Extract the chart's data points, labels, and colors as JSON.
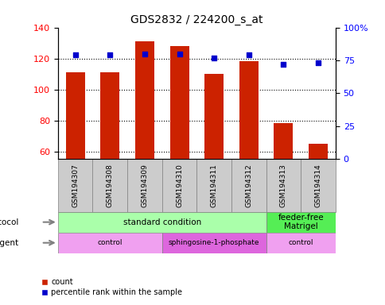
{
  "title": "GDS2832 / 224200_s_at",
  "samples": [
    "GSM194307",
    "GSM194308",
    "GSM194309",
    "GSM194310",
    "GSM194311",
    "GSM194312",
    "GSM194313",
    "GSM194314"
  ],
  "counts": [
    111,
    111,
    131,
    128,
    110,
    118,
    78,
    65
  ],
  "percentile_ranks": [
    79,
    79,
    80,
    80,
    77,
    79,
    72,
    73
  ],
  "ylim_left": [
    55,
    140
  ],
  "ylim_right": [
    0,
    100
  ],
  "yticks_left": [
    60,
    80,
    100,
    120,
    140
  ],
  "yticks_right": [
    0,
    25,
    50,
    75,
    100
  ],
  "bar_color": "#cc2200",
  "dot_color": "#0000cc",
  "bar_width": 0.55,
  "growth_protocol_groups": [
    {
      "label": "standard condition",
      "start": 0,
      "end": 6,
      "color": "#aaffaa"
    },
    {
      "label": "feeder-free\nMatrigel",
      "start": 6,
      "end": 8,
      "color": "#55ee55"
    }
  ],
  "agent_groups": [
    {
      "label": "control",
      "start": 0,
      "end": 3,
      "color": "#f0a0f0"
    },
    {
      "label": "sphingosine-1-phosphate",
      "start": 3,
      "end": 6,
      "color": "#dd66dd"
    },
    {
      "label": "control",
      "start": 6,
      "end": 8,
      "color": "#f0a0f0"
    }
  ],
  "sample_box_color": "#cccccc",
  "grid_yticks": [
    60,
    80,
    100,
    120
  ],
  "right_tick_labels": [
    "0",
    "25",
    "50",
    "75",
    "100%"
  ]
}
